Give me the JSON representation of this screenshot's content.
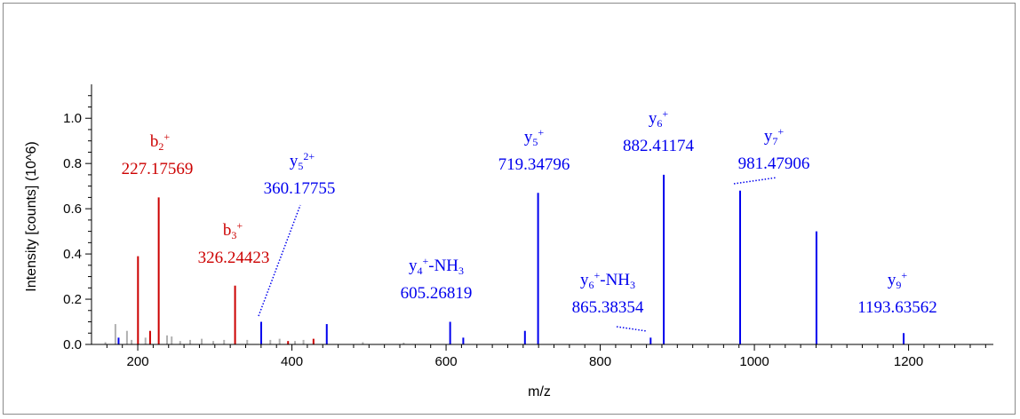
{
  "chart_data": {
    "type": "bar",
    "xlabel": "m/z",
    "ylabel": "Intensity [counts] (10^6)",
    "xlim": [
      140,
      1310
    ],
    "ylim": [
      0,
      1.15
    ],
    "x_ticks": [
      "200",
      "400",
      "600",
      "800",
      "1000",
      "1200"
    ],
    "x_tick_values": [
      200,
      400,
      600,
      800,
      1000,
      1200
    ],
    "y_ticks": [
      "0.0",
      "0.2",
      "0.4",
      "0.6",
      "0.8",
      "1.0"
    ],
    "y_tick_values": [
      0.0,
      0.2,
      0.4,
      0.6,
      0.8,
      1.0
    ],
    "colors": {
      "b_ion": "#cc0000",
      "y_ion": "#0000ee",
      "unassigned": "#b0b0b0",
      "axis": "#000000"
    },
    "series": [
      {
        "name": "b",
        "color": "#cc0000",
        "peaks": [
          {
            "x": 200.3,
            "y": 0.39
          },
          {
            "x": 216.0,
            "y": 0.06
          },
          {
            "x": 227.18,
            "y": 0.65
          },
          {
            "x": 326.24,
            "y": 0.26
          },
          {
            "x": 395.0,
            "y": 0.015
          },
          {
            "x": 428.0,
            "y": 0.025
          }
        ]
      },
      {
        "name": "y",
        "color": "#0000ee",
        "peaks": [
          {
            "x": 175.1,
            "y": 0.03
          },
          {
            "x": 360.18,
            "y": 0.1
          },
          {
            "x": 445.2,
            "y": 0.09
          },
          {
            "x": 605.27,
            "y": 0.1
          },
          {
            "x": 622.3,
            "y": 0.03
          },
          {
            "x": 702.3,
            "y": 0.06
          },
          {
            "x": 719.35,
            "y": 0.67
          },
          {
            "x": 865.38,
            "y": 0.03
          },
          {
            "x": 882.41,
            "y": 0.75
          },
          {
            "x": 981.48,
            "y": 0.68
          },
          {
            "x": 1080.5,
            "y": 0.5
          },
          {
            "x": 1193.64,
            "y": 0.05
          }
        ]
      },
      {
        "name": "unassigned",
        "color": "#b0b0b0",
        "peaks": [
          {
            "x": 158.0,
            "y": 0.01
          },
          {
            "x": 171.0,
            "y": 0.09
          },
          {
            "x": 186.0,
            "y": 0.06
          },
          {
            "x": 192.0,
            "y": 0.02
          },
          {
            "x": 210.0,
            "y": 0.03
          },
          {
            "x": 238.0,
            "y": 0.04
          },
          {
            "x": 244.0,
            "y": 0.035
          },
          {
            "x": 255.0,
            "y": 0.015
          },
          {
            "x": 268.0,
            "y": 0.02
          },
          {
            "x": 283.0,
            "y": 0.025
          },
          {
            "x": 298.0,
            "y": 0.015
          },
          {
            "x": 312.0,
            "y": 0.02
          },
          {
            "x": 342.0,
            "y": 0.02
          },
          {
            "x": 372.0,
            "y": 0.02
          },
          {
            "x": 384.0,
            "y": 0.025
          },
          {
            "x": 404.0,
            "y": 0.015
          },
          {
            "x": 415.0,
            "y": 0.02
          },
          {
            "x": 492.0,
            "y": 0.01
          },
          {
            "x": 545.0,
            "y": 0.008
          }
        ]
      }
    ],
    "annotations": [
      {
        "ion": "b",
        "sub": "2",
        "sup": "+",
        "mass": "227.17569",
        "color": "#cc0000",
        "peak_x": 227.18
      },
      {
        "ion": "b",
        "sub": "3",
        "sup": "+",
        "mass": "326.24423",
        "color": "#cc0000",
        "peak_x": 326.24
      },
      {
        "ion": "y",
        "sub": "5",
        "sup": "2+",
        "mass": "360.17755",
        "color": "#0000ee",
        "peak_x": 360.18
      },
      {
        "ion": "y",
        "sub": "4",
        "sup": "+",
        "suffix": "-NH",
        "suffix_sub": "3",
        "mass": "605.26819",
        "color": "#0000ee",
        "peak_x": 605.27
      },
      {
        "ion": "y",
        "sub": "5",
        "sup": "+",
        "mass": "719.34796",
        "color": "#0000ee",
        "peak_x": 719.35
      },
      {
        "ion": "y",
        "sub": "6",
        "sup": "+",
        "suffix": "-NH",
        "suffix_sub": "3",
        "mass": "865.38354",
        "color": "#0000ee",
        "peak_x": 865.38
      },
      {
        "ion": "y",
        "sub": "6",
        "sup": "+",
        "mass": "882.41174",
        "color": "#0000ee",
        "peak_x": 882.41
      },
      {
        "ion": "y",
        "sub": "7",
        "sup": "+",
        "mass": "981.47906",
        "color": "#0000ee",
        "peak_x": 981.48
      },
      {
        "ion": "y",
        "sub": "9",
        "sup": "+",
        "mass": "1193.63562",
        "color": "#0000ee",
        "peak_x": 1193.64
      }
    ]
  }
}
